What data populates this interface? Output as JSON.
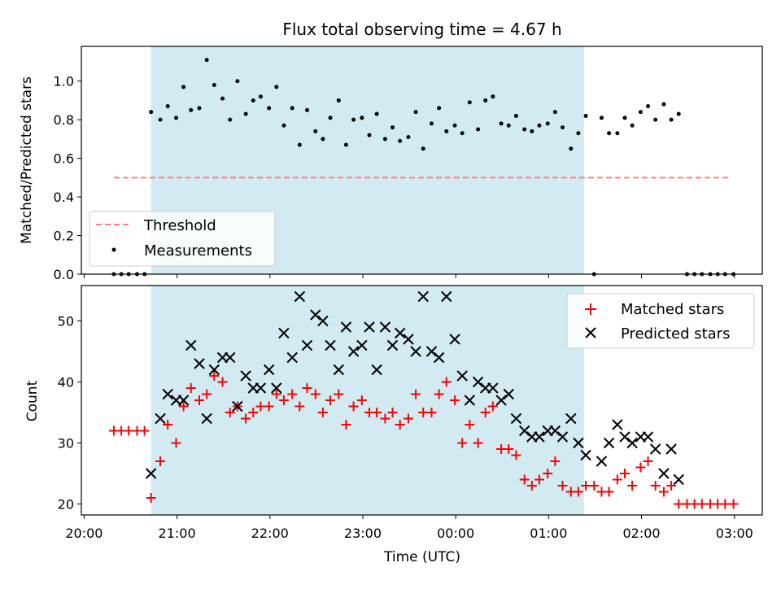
{
  "chart_data": [
    {
      "type": "scatter",
      "title": "Flux total observing time = 4.67 h",
      "ylabel": "Matched/Predicted stars",
      "xlabel": "",
      "ylim": [
        0,
        1.18
      ],
      "x_unit": "hours after 20:00 UTC",
      "yticks": [
        0.0,
        0.2,
        0.4,
        0.6,
        0.8,
        1.0
      ],
      "ytick_labels": [
        "0.0",
        "0.2",
        "0.4",
        "0.6",
        "0.8",
        "1.0"
      ],
      "shaded_span": {
        "x": [
          0.72,
          5.38
        ],
        "color": "#add8e6"
      },
      "threshold": {
        "name": "Threshold",
        "y": 0.5,
        "x": [
          0.32,
          6.95
        ],
        "color": "#ff7f7f",
        "style": "dashed"
      },
      "legend": {
        "position": "lower-left",
        "entries": [
          "Threshold",
          "Measurements"
        ]
      },
      "series": [
        {
          "name": "Measurements",
          "color": "#000000",
          "x": [
            0.32,
            0.4,
            0.48,
            0.57,
            0.65,
            0.72,
            0.82,
            0.9,
            0.99,
            1.07,
            1.15,
            1.24,
            1.32,
            1.4,
            1.49,
            1.57,
            1.65,
            1.74,
            1.82,
            1.9,
            1.99,
            2.07,
            2.15,
            2.24,
            2.32,
            2.4,
            2.49,
            2.57,
            2.65,
            2.74,
            2.82,
            2.9,
            2.99,
            3.07,
            3.15,
            3.24,
            3.32,
            3.4,
            3.49,
            3.57,
            3.65,
            3.74,
            3.82,
            3.9,
            3.99,
            4.07,
            4.15,
            4.24,
            4.32,
            4.4,
            4.49,
            4.57,
            4.65,
            4.74,
            4.82,
            4.9,
            4.99,
            5.07,
            5.15,
            5.24,
            5.32,
            5.4,
            5.49,
            5.57,
            5.65,
            5.74,
            5.82,
            5.9,
            5.99,
            6.07,
            6.15,
            6.24,
            6.32,
            6.4,
            6.49,
            6.57,
            6.65,
            6.74,
            6.82,
            6.9,
            6.99
          ],
          "y": [
            0,
            0,
            0,
            0,
            0,
            0.84,
            0.8,
            0.87,
            0.81,
            0.97,
            0.85,
            0.86,
            1.11,
            0.98,
            0.91,
            0.8,
            1.0,
            0.83,
            0.9,
            0.92,
            0.86,
            0.97,
            0.77,
            0.86,
            0.67,
            0.85,
            0.74,
            0.7,
            0.81,
            0.9,
            0.67,
            0.8,
            0.81,
            0.72,
            0.83,
            0.7,
            0.76,
            0.69,
            0.71,
            0.84,
            0.65,
            0.78,
            0.86,
            0.74,
            0.77,
            0.73,
            0.89,
            0.75,
            0.9,
            0.92,
            0.78,
            0.77,
            0.82,
            0.75,
            0.74,
            0.77,
            0.78,
            0.84,
            0.76,
            0.65,
            0.73,
            0.82,
            0.0,
            0.81,
            0.73,
            0.73,
            0.81,
            0.77,
            0.84,
            0.87,
            0.8,
            0.88,
            0.8,
            0.83,
            0,
            0,
            0,
            0,
            0,
            0,
            0
          ]
        }
      ]
    },
    {
      "type": "scatter",
      "title": "",
      "xlabel": "Time (UTC)",
      "ylabel": "Count",
      "ylim": [
        18.2,
        55.8
      ],
      "xlim": [
        -0.03,
        7.3
      ],
      "x_unit": "hours after 20:00 UTC",
      "xticks": [
        0,
        1,
        2,
        3,
        4,
        5,
        6,
        7
      ],
      "xtick_labels": [
        "20:00",
        "21:00",
        "22:00",
        "23:00",
        "00:00",
        "01:00",
        "02:00",
        "03:00"
      ],
      "yticks": [
        20,
        30,
        40,
        50
      ],
      "ytick_labels": [
        "20",
        "30",
        "40",
        "50"
      ],
      "shaded_span": {
        "x": [
          0.72,
          5.38
        ],
        "color": "#add8e6"
      },
      "legend": {
        "position": "top-right",
        "entries": [
          "Matched stars",
          "Predicted stars"
        ]
      },
      "series": [
        {
          "name": "Matched stars",
          "marker": "+",
          "color": "#ff0000",
          "x": [
            0.32,
            0.4,
            0.48,
            0.57,
            0.65,
            0.72,
            0.82,
            0.9,
            0.99,
            1.07,
            1.15,
            1.24,
            1.32,
            1.4,
            1.49,
            1.57,
            1.65,
            1.74,
            1.82,
            1.9,
            1.99,
            2.07,
            2.15,
            2.24,
            2.32,
            2.4,
            2.49,
            2.57,
            2.65,
            2.74,
            2.82,
            2.9,
            2.99,
            3.07,
            3.15,
            3.24,
            3.32,
            3.4,
            3.49,
            3.57,
            3.65,
            3.74,
            3.82,
            3.9,
            3.99,
            4.07,
            4.15,
            4.24,
            4.32,
            4.4,
            4.49,
            4.57,
            4.65,
            4.74,
            4.82,
            4.9,
            4.99,
            5.07,
            5.15,
            5.24,
            5.32,
            5.4,
            5.49,
            5.57,
            5.65,
            5.74,
            5.82,
            5.9,
            5.99,
            6.07,
            6.15,
            6.24,
            6.32,
            6.4,
            6.49,
            6.57,
            6.65,
            6.74,
            6.82,
            6.9,
            6.99
          ],
          "y": [
            32,
            32,
            32,
            32,
            32,
            21,
            27,
            33,
            30,
            36,
            39,
            37,
            38,
            41,
            40,
            35,
            36,
            34,
            35,
            36,
            36,
            38,
            37,
            38,
            36,
            39,
            38,
            35,
            37,
            38,
            33,
            36,
            37,
            35,
            35,
            34,
            35,
            33,
            34,
            38,
            35,
            35,
            38,
            40,
            37,
            30,
            33,
            30,
            35,
            36,
            29,
            29,
            28,
            24,
            23,
            24,
            25,
            27,
            23,
            22,
            22,
            23,
            23,
            22,
            22,
            24,
            25,
            23,
            26,
            27,
            23,
            22,
            23,
            20,
            20,
            20,
            20,
            20,
            20,
            20,
            20
          ]
        },
        {
          "name": "Predicted stars",
          "marker": "x",
          "color": "#000000",
          "x": [
            0.72,
            0.82,
            0.9,
            0.99,
            1.07,
            1.15,
            1.24,
            1.32,
            1.4,
            1.49,
            1.57,
            1.65,
            1.74,
            1.82,
            1.9,
            1.99,
            2.07,
            2.15,
            2.24,
            2.32,
            2.4,
            2.49,
            2.57,
            2.65,
            2.74,
            2.82,
            2.9,
            2.99,
            3.07,
            3.15,
            3.24,
            3.32,
            3.4,
            3.49,
            3.57,
            3.65,
            3.74,
            3.82,
            3.9,
            3.99,
            4.07,
            4.15,
            4.24,
            4.32,
            4.4,
            4.49,
            4.57,
            4.65,
            4.74,
            4.82,
            4.9,
            4.99,
            5.07,
            5.15,
            5.24,
            5.32,
            5.4,
            5.57,
            5.65,
            5.74,
            5.82,
            5.9,
            5.99,
            6.07,
            6.15,
            6.24,
            6.32,
            6.4
          ],
          "y": [
            25,
            34,
            38,
            37,
            37,
            46,
            43,
            34,
            42,
            44,
            44,
            36,
            41,
            39,
            39,
            42,
            39,
            48,
            44,
            54,
            46,
            51,
            50,
            46,
            42,
            49,
            45,
            46,
            49,
            42,
            49,
            46,
            48,
            47,
            45,
            54,
            45,
            44,
            54,
            47,
            41,
            37,
            40,
            39,
            39,
            37,
            38,
            34,
            32,
            31,
            31,
            32,
            32,
            31,
            34,
            30,
            28,
            27,
            30,
            33,
            31,
            30,
            31,
            31,
            29,
            25,
            29,
            24
          ]
        }
      ]
    }
  ]
}
